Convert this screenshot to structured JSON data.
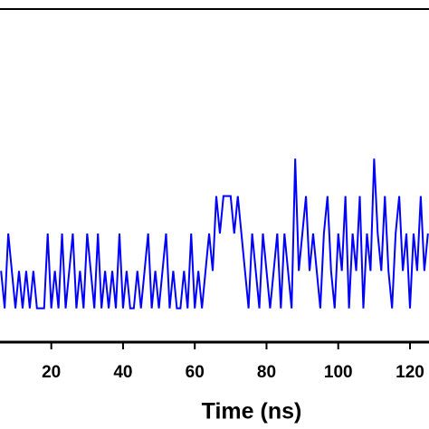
{
  "chart_data": {
    "type": "line",
    "x_label": "Time (ns)",
    "x": [
      6,
      7,
      8,
      9,
      10,
      11,
      12,
      13,
      14,
      15,
      16,
      17,
      18,
      19,
      20,
      21,
      22,
      23,
      24,
      25,
      26,
      27,
      28,
      29,
      30,
      31,
      32,
      33,
      34,
      35,
      36,
      37,
      38,
      39,
      40,
      41,
      42,
      43,
      44,
      45,
      46,
      47,
      48,
      49,
      50,
      51,
      52,
      53,
      54,
      55,
      56,
      57,
      58,
      59,
      60,
      61,
      62,
      63,
      64,
      65,
      66,
      67,
      68,
      69,
      70,
      71,
      72,
      73,
      74,
      75,
      76,
      77,
      78,
      79,
      80,
      81,
      82,
      83,
      84,
      85,
      86,
      87,
      88,
      89,
      90,
      91,
      92,
      93,
      94,
      95,
      96,
      97,
      98,
      99,
      100,
      101,
      102,
      103,
      104,
      105,
      106,
      107,
      108,
      109,
      110,
      111,
      112,
      113,
      114,
      115,
      116,
      117,
      118,
      119,
      120,
      121,
      122,
      123,
      124,
      125
    ],
    "series": [
      {
        "color": "#0000ff",
        "values": [
          2,
          1,
          3,
          2,
          1,
          2,
          1,
          2,
          1,
          2,
          1,
          1,
          1,
          3,
          1,
          2,
          1,
          3,
          1,
          2,
          3,
          1,
          2,
          1,
          3,
          2,
          1,
          3,
          1,
          2,
          1,
          2,
          1,
          3,
          1,
          2,
          1,
          1,
          2,
          1,
          2,
          3,
          1,
          2,
          1,
          2,
          3,
          1,
          2,
          1,
          1,
          2,
          1,
          3,
          1,
          2,
          1,
          2,
          3,
          2,
          4,
          3,
          4,
          4,
          4,
          3,
          4,
          3,
          2,
          1,
          3,
          2,
          1,
          3,
          2,
          1,
          2,
          3,
          1,
          3,
          2,
          1,
          5,
          2,
          3,
          4,
          2,
          3,
          2,
          1,
          3,
          4,
          2,
          1,
          3,
          2,
          4,
          1,
          3,
          2,
          4,
          1,
          3,
          2,
          5,
          3,
          2,
          4,
          2,
          1,
          3,
          4,
          2,
          3,
          1,
          3,
          2,
          4,
          2,
          3
        ]
      }
    ],
    "xlim": [
      5.7,
      125.3
    ],
    "ylim": [
      0,
      9
    ],
    "xticks": [
      20,
      40,
      60,
      80,
      100,
      120
    ]
  }
}
